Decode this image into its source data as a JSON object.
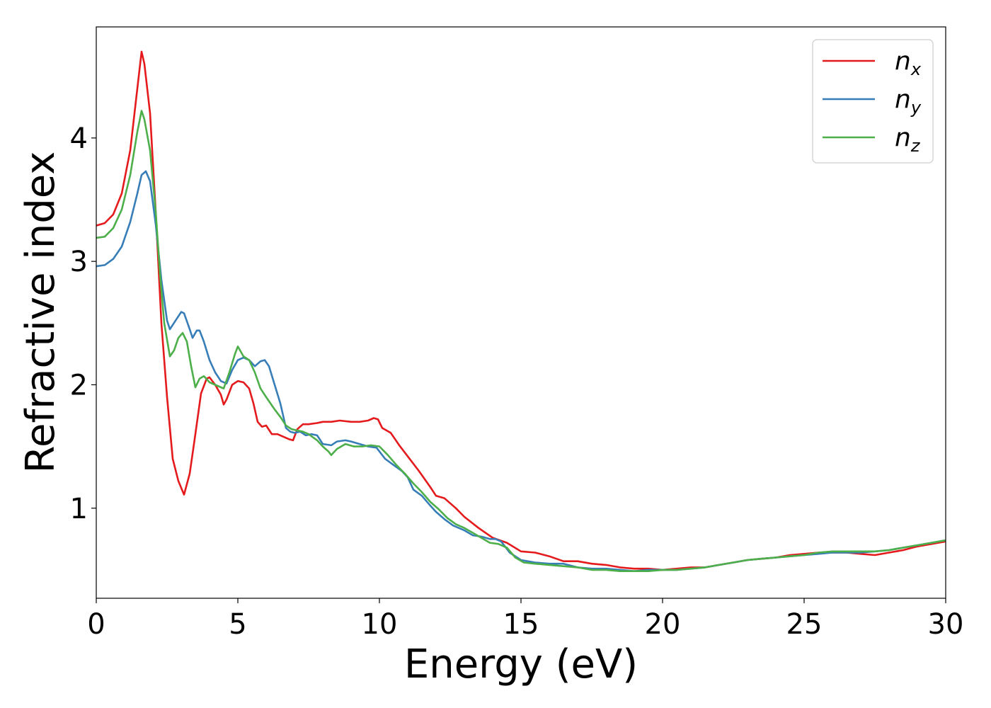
{
  "chart_data": {
    "type": "line",
    "title": "",
    "xlabel": "Energy (eV)",
    "ylabel": "Refractive index",
    "xlim": [
      0,
      30
    ],
    "ylim": [
      0.27,
      4.9
    ],
    "xticks": [
      0,
      5,
      10,
      15,
      20,
      25,
      30
    ],
    "yticks": [
      1,
      2,
      3,
      4
    ],
    "grid": false,
    "legend_position": "top-right",
    "series": [
      {
        "name": "n_x",
        "label_base": "n",
        "label_sub": "x",
        "color": "#e41a1c",
        "points": [
          [
            0,
            3.29
          ],
          [
            0.3,
            3.31
          ],
          [
            0.6,
            3.38
          ],
          [
            0.9,
            3.55
          ],
          [
            1.2,
            3.9
          ],
          [
            1.45,
            4.4
          ],
          [
            1.6,
            4.7
          ],
          [
            1.7,
            4.6
          ],
          [
            1.9,
            4.2
          ],
          [
            2.1,
            3.4
          ],
          [
            2.3,
            2.5
          ],
          [
            2.5,
            1.9
          ],
          [
            2.7,
            1.4
          ],
          [
            2.9,
            1.22
          ],
          [
            3.1,
            1.11
          ],
          [
            3.3,
            1.28
          ],
          [
            3.5,
            1.6
          ],
          [
            3.7,
            1.93
          ],
          [
            3.9,
            2.05
          ],
          [
            4.0,
            2.06
          ],
          [
            4.2,
            2.0
          ],
          [
            4.4,
            1.92
          ],
          [
            4.5,
            1.84
          ],
          [
            4.6,
            1.88
          ],
          [
            4.8,
            2.0
          ],
          [
            5.0,
            2.03
          ],
          [
            5.2,
            2.02
          ],
          [
            5.4,
            1.97
          ],
          [
            5.55,
            1.85
          ],
          [
            5.7,
            1.7
          ],
          [
            5.85,
            1.66
          ],
          [
            6.0,
            1.67
          ],
          [
            6.2,
            1.6
          ],
          [
            6.4,
            1.6
          ],
          [
            6.6,
            1.58
          ],
          [
            6.8,
            1.56
          ],
          [
            6.95,
            1.55
          ],
          [
            7.1,
            1.64
          ],
          [
            7.3,
            1.68
          ],
          [
            7.5,
            1.68
          ],
          [
            7.8,
            1.69
          ],
          [
            8.0,
            1.7
          ],
          [
            8.3,
            1.7
          ],
          [
            8.6,
            1.71
          ],
          [
            9.0,
            1.7
          ],
          [
            9.3,
            1.7
          ],
          [
            9.6,
            1.71
          ],
          [
            9.8,
            1.73
          ],
          [
            9.95,
            1.72
          ],
          [
            10.1,
            1.65
          ],
          [
            10.4,
            1.61
          ],
          [
            10.7,
            1.51
          ],
          [
            11.0,
            1.42
          ],
          [
            11.4,
            1.3
          ],
          [
            11.8,
            1.17
          ],
          [
            12.0,
            1.1
          ],
          [
            12.3,
            1.08
          ],
          [
            12.7,
            1.0
          ],
          [
            13.0,
            0.93
          ],
          [
            13.5,
            0.84
          ],
          [
            14.0,
            0.76
          ],
          [
            14.5,
            0.72
          ],
          [
            15.0,
            0.65
          ],
          [
            15.5,
            0.64
          ],
          [
            16.0,
            0.61
          ],
          [
            16.5,
            0.57
          ],
          [
            17.0,
            0.57
          ],
          [
            17.5,
            0.55
          ],
          [
            18.0,
            0.54
          ],
          [
            18.5,
            0.52
          ],
          [
            19.0,
            0.51
          ],
          [
            19.5,
            0.51
          ],
          [
            20.0,
            0.5
          ],
          [
            20.5,
            0.51
          ],
          [
            21.0,
            0.52
          ],
          [
            21.5,
            0.52
          ],
          [
            22.0,
            0.54
          ],
          [
            22.5,
            0.56
          ],
          [
            23.0,
            0.58
          ],
          [
            23.5,
            0.59
          ],
          [
            24.0,
            0.6
          ],
          [
            24.5,
            0.62
          ],
          [
            25.0,
            0.63
          ],
          [
            25.5,
            0.64
          ],
          [
            26.0,
            0.64
          ],
          [
            26.5,
            0.64
          ],
          [
            27.0,
            0.63
          ],
          [
            27.5,
            0.62
          ],
          [
            28.0,
            0.64
          ],
          [
            28.5,
            0.66
          ],
          [
            29.0,
            0.69
          ],
          [
            29.5,
            0.71
          ],
          [
            30.0,
            0.73
          ]
        ]
      },
      {
        "name": "n_y",
        "label_base": "n",
        "label_sub": "y",
        "color": "#377eb8",
        "points": [
          [
            0,
            2.96
          ],
          [
            0.3,
            2.97
          ],
          [
            0.6,
            3.02
          ],
          [
            0.9,
            3.12
          ],
          [
            1.2,
            3.32
          ],
          [
            1.45,
            3.55
          ],
          [
            1.6,
            3.7
          ],
          [
            1.75,
            3.73
          ],
          [
            1.9,
            3.65
          ],
          [
            2.1,
            3.3
          ],
          [
            2.3,
            2.85
          ],
          [
            2.5,
            2.52
          ],
          [
            2.6,
            2.45
          ],
          [
            2.8,
            2.52
          ],
          [
            3.0,
            2.59
          ],
          [
            3.1,
            2.58
          ],
          [
            3.3,
            2.45
          ],
          [
            3.4,
            2.38
          ],
          [
            3.55,
            2.44
          ],
          [
            3.65,
            2.44
          ],
          [
            3.8,
            2.35
          ],
          [
            4.0,
            2.2
          ],
          [
            4.2,
            2.1
          ],
          [
            4.4,
            2.03
          ],
          [
            4.6,
            2.01
          ],
          [
            4.8,
            2.12
          ],
          [
            5.0,
            2.2
          ],
          [
            5.2,
            2.22
          ],
          [
            5.4,
            2.2
          ],
          [
            5.6,
            2.15
          ],
          [
            5.8,
            2.19
          ],
          [
            5.95,
            2.2
          ],
          [
            6.1,
            2.15
          ],
          [
            6.3,
            2.0
          ],
          [
            6.5,
            1.85
          ],
          [
            6.7,
            1.65
          ],
          [
            6.85,
            1.62
          ],
          [
            7.0,
            1.61
          ],
          [
            7.2,
            1.62
          ],
          [
            7.4,
            1.59
          ],
          [
            7.6,
            1.6
          ],
          [
            7.8,
            1.59
          ],
          [
            8.0,
            1.52
          ],
          [
            8.3,
            1.51
          ],
          [
            8.5,
            1.54
          ],
          [
            8.8,
            1.55
          ],
          [
            9.0,
            1.54
          ],
          [
            9.3,
            1.52
          ],
          [
            9.6,
            1.5
          ],
          [
            9.9,
            1.49
          ],
          [
            10.2,
            1.4
          ],
          [
            10.5,
            1.35
          ],
          [
            10.8,
            1.3
          ],
          [
            11.0,
            1.25
          ],
          [
            11.2,
            1.15
          ],
          [
            11.5,
            1.1
          ],
          [
            11.8,
            1.02
          ],
          [
            12.0,
            0.97
          ],
          [
            12.3,
            0.91
          ],
          [
            12.6,
            0.86
          ],
          [
            13.0,
            0.82
          ],
          [
            13.3,
            0.78
          ],
          [
            13.6,
            0.77
          ],
          [
            13.9,
            0.75
          ],
          [
            14.1,
            0.75
          ],
          [
            14.3,
            0.73
          ],
          [
            14.6,
            0.64
          ],
          [
            15.0,
            0.58
          ],
          [
            15.5,
            0.56
          ],
          [
            16.0,
            0.55
          ],
          [
            16.5,
            0.55
          ],
          [
            17.0,
            0.52
          ],
          [
            17.5,
            0.51
          ],
          [
            18.0,
            0.51
          ],
          [
            18.5,
            0.5
          ],
          [
            19.0,
            0.49
          ],
          [
            19.5,
            0.5
          ],
          [
            20.0,
            0.5
          ],
          [
            20.5,
            0.5
          ],
          [
            21.0,
            0.51
          ],
          [
            21.5,
            0.52
          ],
          [
            22.0,
            0.54
          ],
          [
            22.5,
            0.56
          ],
          [
            23.0,
            0.58
          ],
          [
            23.5,
            0.59
          ],
          [
            24.0,
            0.6
          ],
          [
            24.5,
            0.61
          ],
          [
            25.0,
            0.62
          ],
          [
            25.5,
            0.63
          ],
          [
            26.0,
            0.64
          ],
          [
            26.5,
            0.64
          ],
          [
            27.0,
            0.64
          ],
          [
            27.5,
            0.65
          ],
          [
            28.0,
            0.66
          ],
          [
            28.5,
            0.68
          ],
          [
            29.0,
            0.7
          ],
          [
            29.5,
            0.72
          ],
          [
            30.0,
            0.74
          ]
        ]
      },
      {
        "name": "n_z",
        "label_base": "n",
        "label_sub": "z",
        "color": "#4daf4a",
        "points": [
          [
            0,
            3.19
          ],
          [
            0.3,
            3.2
          ],
          [
            0.6,
            3.27
          ],
          [
            0.9,
            3.42
          ],
          [
            1.2,
            3.7
          ],
          [
            1.45,
            4.05
          ],
          [
            1.6,
            4.22
          ],
          [
            1.7,
            4.15
          ],
          [
            1.9,
            3.9
          ],
          [
            2.1,
            3.4
          ],
          [
            2.25,
            2.9
          ],
          [
            2.4,
            2.5
          ],
          [
            2.6,
            2.23
          ],
          [
            2.75,
            2.28
          ],
          [
            2.9,
            2.38
          ],
          [
            3.05,
            2.42
          ],
          [
            3.2,
            2.35
          ],
          [
            3.35,
            2.15
          ],
          [
            3.5,
            1.98
          ],
          [
            3.65,
            2.05
          ],
          [
            3.8,
            2.07
          ],
          [
            4.0,
            2.02
          ],
          [
            4.2,
            2.0
          ],
          [
            4.4,
            1.98
          ],
          [
            4.5,
            1.97
          ],
          [
            4.7,
            2.1
          ],
          [
            4.9,
            2.25
          ],
          [
            5.0,
            2.31
          ],
          [
            5.2,
            2.23
          ],
          [
            5.4,
            2.2
          ],
          [
            5.6,
            2.1
          ],
          [
            5.8,
            1.97
          ],
          [
            6.0,
            1.9
          ],
          [
            6.3,
            1.8
          ],
          [
            6.5,
            1.74
          ],
          [
            6.7,
            1.67
          ],
          [
            6.9,
            1.64
          ],
          [
            7.1,
            1.63
          ],
          [
            7.3,
            1.62
          ],
          [
            7.5,
            1.6
          ],
          [
            7.8,
            1.55
          ],
          [
            8.0,
            1.5
          ],
          [
            8.2,
            1.46
          ],
          [
            8.3,
            1.43
          ],
          [
            8.5,
            1.48
          ],
          [
            8.8,
            1.52
          ],
          [
            9.1,
            1.5
          ],
          [
            9.4,
            1.5
          ],
          [
            9.7,
            1.51
          ],
          [
            10.0,
            1.5
          ],
          [
            10.3,
            1.43
          ],
          [
            10.6,
            1.35
          ],
          [
            10.9,
            1.28
          ],
          [
            11.2,
            1.2
          ],
          [
            11.5,
            1.13
          ],
          [
            11.8,
            1.05
          ],
          [
            12.1,
            0.99
          ],
          [
            12.4,
            0.92
          ],
          [
            12.7,
            0.87
          ],
          [
            13.0,
            0.84
          ],
          [
            13.3,
            0.8
          ],
          [
            13.6,
            0.76
          ],
          [
            13.9,
            0.72
          ],
          [
            14.2,
            0.71
          ],
          [
            14.5,
            0.68
          ],
          [
            14.8,
            0.6
          ],
          [
            15.1,
            0.56
          ],
          [
            15.5,
            0.55
          ],
          [
            16.0,
            0.54
          ],
          [
            16.5,
            0.53
          ],
          [
            17.0,
            0.52
          ],
          [
            17.5,
            0.5
          ],
          [
            18.0,
            0.5
          ],
          [
            18.5,
            0.49
          ],
          [
            19.0,
            0.49
          ],
          [
            19.5,
            0.49
          ],
          [
            20.0,
            0.5
          ],
          [
            20.5,
            0.5
          ],
          [
            21.0,
            0.51
          ],
          [
            21.5,
            0.52
          ],
          [
            22.0,
            0.54
          ],
          [
            22.5,
            0.56
          ],
          [
            23.0,
            0.58
          ],
          [
            23.5,
            0.59
          ],
          [
            24.0,
            0.6
          ],
          [
            24.5,
            0.61
          ],
          [
            25.0,
            0.62
          ],
          [
            25.5,
            0.64
          ],
          [
            26.0,
            0.65
          ],
          [
            26.5,
            0.65
          ],
          [
            27.0,
            0.65
          ],
          [
            27.5,
            0.65
          ],
          [
            28.0,
            0.66
          ],
          [
            28.5,
            0.68
          ],
          [
            29.0,
            0.7
          ],
          [
            29.5,
            0.72
          ],
          [
            30.0,
            0.74
          ]
        ]
      }
    ]
  }
}
